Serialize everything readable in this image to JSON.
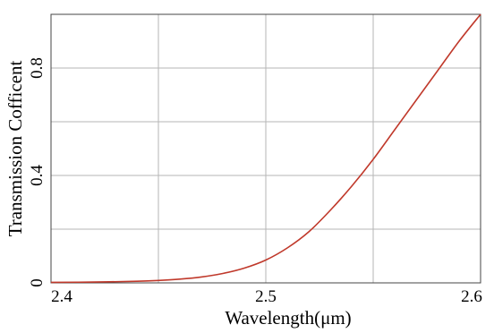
{
  "chart_data": {
    "type": "line",
    "title": "",
    "xlabel": "Wavelength(μm)",
    "ylabel": "Transmission Cofficent",
    "xlim": [
      2.4,
      2.6
    ],
    "ylim": [
      0,
      1
    ],
    "x_ticks": [
      2.4,
      2.5,
      2.6
    ],
    "x_tick_labels": [
      "2.4",
      "2.5",
      "2.6"
    ],
    "y_ticks": [
      0,
      0.4,
      0.8
    ],
    "y_tick_labels": [
      "0",
      "0.4",
      "0.8"
    ],
    "grid": true,
    "series": [
      {
        "color": "#c0392b",
        "x": [
          2.4,
          2.42,
          2.44,
          2.45,
          2.46,
          2.47,
          2.48,
          2.49,
          2.5,
          2.51,
          2.52,
          2.53,
          2.54,
          2.55,
          2.56,
          2.57,
          2.58,
          2.59,
          2.6
        ],
        "y": [
          0.002,
          0.003,
          0.006,
          0.009,
          0.014,
          0.022,
          0.035,
          0.055,
          0.085,
          0.13,
          0.19,
          0.27,
          0.36,
          0.46,
          0.57,
          0.68,
          0.79,
          0.9,
          1.0
        ]
      }
    ]
  }
}
